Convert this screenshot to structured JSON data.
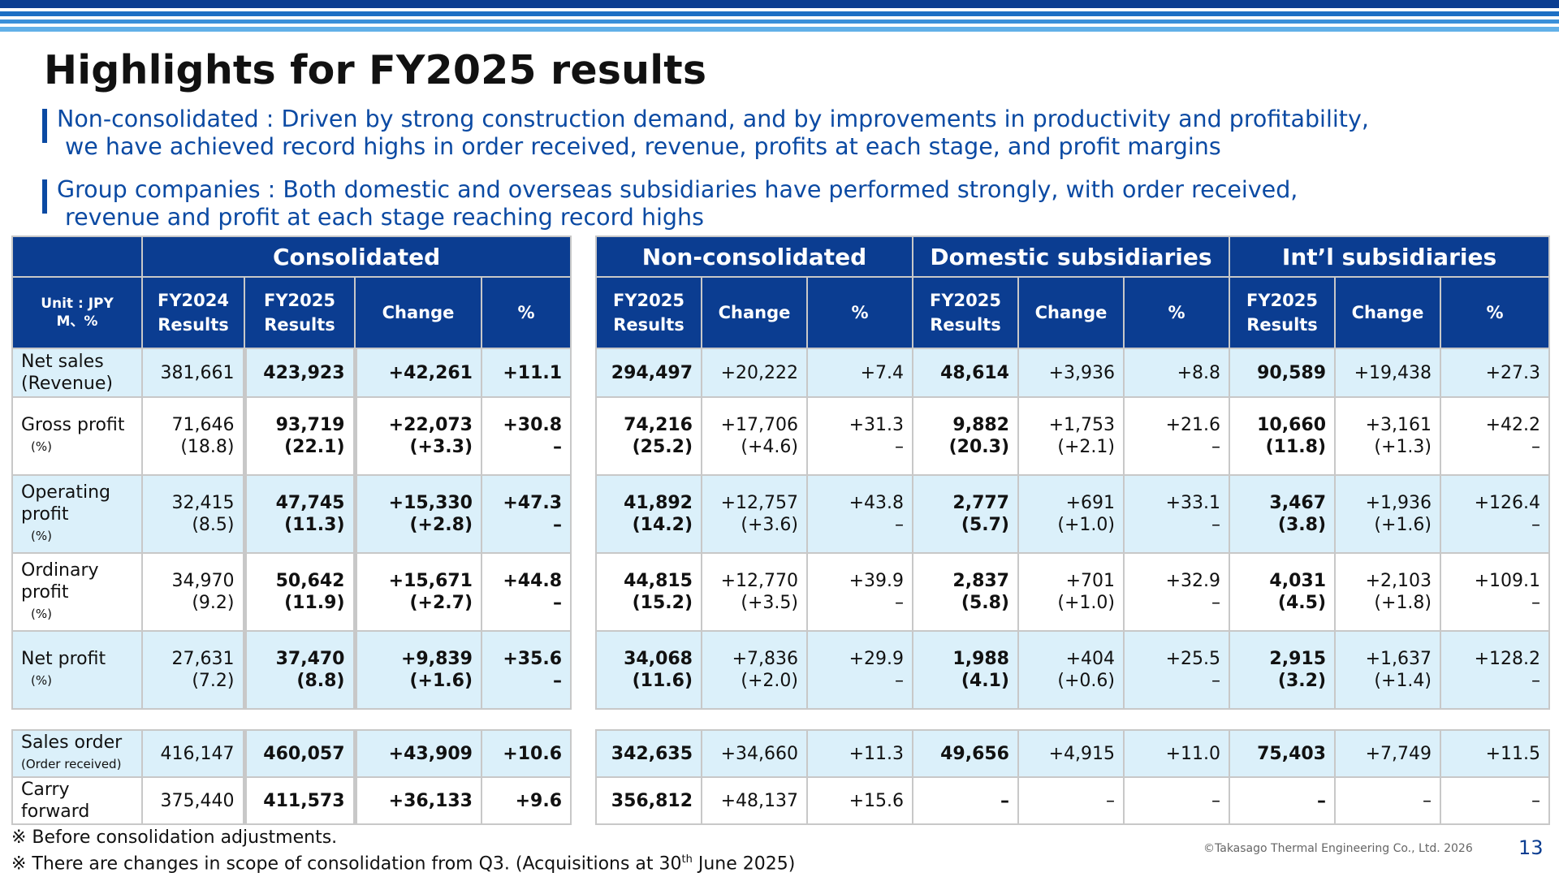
{
  "title": "Highlights for FY2025 results",
  "bullets": [
    {
      "line1": "Non-consolidated : Driven by strong construction demand, and by improvements in productivity and profitability,",
      "line2": "we have achieved record highs in order received, revenue, profits at each stage, and profit margins"
    },
    {
      "line1": "Group companies : Both domestic and overseas subsidiaries have performed strongly, with order received,",
      "line2": "revenue and profit at each stage reaching record highs"
    }
  ],
  "consolidated": {
    "group_header": "Consolidated",
    "unit_label": [
      "Unit : JPY",
      "M、%"
    ],
    "columns": [
      [
        "FY2024",
        "Results"
      ],
      [
        "FY2025",
        "Results"
      ],
      [
        "Change"
      ],
      [
        "%"
      ]
    ],
    "rows": [
      {
        "label": [
          "Net sales",
          "(Revenue)"
        ],
        "cells": [
          [
            "381,661"
          ],
          [
            "423,923"
          ],
          [
            "+42,261"
          ],
          [
            "+11.1"
          ]
        ]
      },
      {
        "label": [
          "Gross profit"
        ],
        "pct_label": "(%)",
        "cells": [
          [
            "71,646",
            "(18.8)"
          ],
          [
            "93,719",
            "(22.1)"
          ],
          [
            "+22,073",
            "(+3.3)"
          ],
          [
            "+30.8",
            "–"
          ]
        ]
      },
      {
        "label": [
          "Operating",
          "profit"
        ],
        "pct_label": "(%)",
        "cells": [
          [
            "32,415",
            "(8.5)"
          ],
          [
            "47,745",
            "(11.3)"
          ],
          [
            "+15,330",
            "(+2.8)"
          ],
          [
            "+47.3",
            "–"
          ]
        ]
      },
      {
        "label": [
          "Ordinary",
          "profit"
        ],
        "pct_label": "(%)",
        "cells": [
          [
            "34,970",
            "(9.2)"
          ],
          [
            "50,642",
            "(11.9)"
          ],
          [
            "+15,671",
            "(+2.7)"
          ],
          [
            "+44.8",
            "–"
          ]
        ]
      },
      {
        "label": [
          "Net profit"
        ],
        "pct_label": "(%)",
        "cells": [
          [
            "27,631",
            "(7.2)"
          ],
          [
            "37,470",
            "(8.8)"
          ],
          [
            "+9,839",
            "(+1.6)"
          ],
          [
            "+35.6",
            "–"
          ]
        ]
      }
    ],
    "order_rows": [
      {
        "label": "Sales order",
        "sub": "(Order received)",
        "cells": [
          "416,147",
          "460,057",
          "+43,909",
          "+10.6"
        ]
      },
      {
        "label": "Carry forward",
        "sub": "",
        "cells": [
          "375,440",
          "411,573",
          "+36,133",
          "+9.6"
        ]
      }
    ]
  },
  "segments": {
    "group_headers": [
      "Non-consolidated",
      "Domestic subsidiaries",
      "Int’l subsidiaries"
    ],
    "columns": [
      [
        "FY2025",
        "Results"
      ],
      [
        "Change"
      ],
      [
        "%"
      ]
    ],
    "rows": [
      [
        [
          "294,497"
        ],
        [
          "+20,222"
        ],
        [
          "+7.4"
        ],
        [
          "48,614"
        ],
        [
          "+3,936"
        ],
        [
          "+8.8"
        ],
        [
          "90,589"
        ],
        [
          "+19,438"
        ],
        [
          "+27.3"
        ]
      ],
      [
        [
          "74,216",
          "(25.2)"
        ],
        [
          "+17,706",
          "(+4.6)"
        ],
        [
          "+31.3",
          "–"
        ],
        [
          "9,882",
          "(20.3)"
        ],
        [
          "+1,753",
          "(+2.1)"
        ],
        [
          "+21.6",
          "–"
        ],
        [
          "10,660",
          "(11.8)"
        ],
        [
          "+3,161",
          "(+1.3)"
        ],
        [
          "+42.2",
          "–"
        ]
      ],
      [
        [
          "41,892",
          "(14.2)"
        ],
        [
          "+12,757",
          "(+3.6)"
        ],
        [
          "+43.8",
          "–"
        ],
        [
          "2,777",
          "(5.7)"
        ],
        [
          "+691",
          "(+1.0)"
        ],
        [
          "+33.1",
          "–"
        ],
        [
          "3,467",
          "(3.8)"
        ],
        [
          "+1,936",
          "(+1.6)"
        ],
        [
          "+126.4",
          "–"
        ]
      ],
      [
        [
          "44,815",
          "(15.2)"
        ],
        [
          "+12,770",
          "(+3.5)"
        ],
        [
          "+39.9",
          "–"
        ],
        [
          "2,837",
          "(5.8)"
        ],
        [
          "+701",
          "(+1.0)"
        ],
        [
          "+32.9",
          "–"
        ],
        [
          "4,031",
          "(4.5)"
        ],
        [
          "+2,103",
          "(+1.8)"
        ],
        [
          "+109.1",
          "–"
        ]
      ],
      [
        [
          "34,068",
          "(11.6)"
        ],
        [
          "+7,836",
          "(+2.0)"
        ],
        [
          "+29.9",
          "–"
        ],
        [
          "1,988",
          "(4.1)"
        ],
        [
          "+404",
          "(+0.6)"
        ],
        [
          "+25.5",
          "–"
        ],
        [
          "2,915",
          "(3.2)"
        ],
        [
          "+1,637",
          "(+1.4)"
        ],
        [
          "+128.2",
          "–"
        ]
      ]
    ],
    "order_rows": [
      [
        "342,635",
        "+34,660",
        "+11.3",
        "49,656",
        "+4,915",
        "+11.0",
        "75,403",
        "+7,749",
        "+11.5"
      ],
      [
        "356,812",
        "+48,137",
        "+15.6",
        "–",
        "–",
        "–",
        "–",
        "–",
        "–"
      ]
    ]
  },
  "notes": [
    "※ Before consolidation adjustments.",
    "※ There are changes in scope of consolidation from Q3. (Acquisitions at 30",
    "th",
    " June 2025)"
  ],
  "copyright": "©Takasago Thermal Engineering Co., Ltd. 2026",
  "page_number": "13",
  "colors": {
    "header_blue": "#0b3d91",
    "row_blue": "#dbf0fa",
    "text_blue": "#0b4aa3"
  }
}
